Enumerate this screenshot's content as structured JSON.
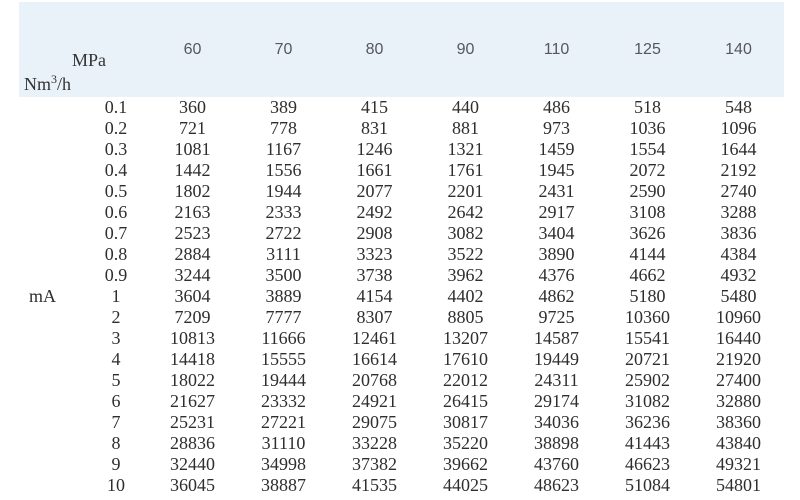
{
  "colors": {
    "header_bg": "#eaf2f9",
    "page_bg": "#ffffff"
  },
  "table": {
    "corner": {
      "col_axis_label": "MPa",
      "row_unit_prefix": "Nm",
      "row_unit_sup": "3",
      "row_unit_suffix": "/h"
    },
    "row_axis_label": "mA",
    "row_axis_row_index": 9,
    "column_headers": [
      "60",
      "70",
      "80",
      "90",
      "110",
      "125",
      "140"
    ],
    "rows": [
      {
        "label": "0.1",
        "values": [
          "360",
          "389",
          "415",
          "440",
          "486",
          "518",
          "548"
        ]
      },
      {
        "label": "0.2",
        "values": [
          "721",
          "778",
          "831",
          "881",
          "973",
          "1036",
          "1096"
        ]
      },
      {
        "label": "0.3",
        "values": [
          "1081",
          "1167",
          "1246",
          "1321",
          "1459",
          "1554",
          "1644"
        ]
      },
      {
        "label": "0.4",
        "values": [
          "1442",
          "1556",
          "1661",
          "1761",
          "1945",
          "2072",
          "2192"
        ]
      },
      {
        "label": "0.5",
        "values": [
          "1802",
          "1944",
          "2077",
          "2201",
          "2431",
          "2590",
          "2740"
        ]
      },
      {
        "label": "0.6",
        "values": [
          "2163",
          "2333",
          "2492",
          "2642",
          "2917",
          "3108",
          "3288"
        ]
      },
      {
        "label": "0.7",
        "values": [
          "2523",
          "2722",
          "2908",
          "3082",
          "3404",
          "3626",
          "3836"
        ]
      },
      {
        "label": "0.8",
        "values": [
          "2884",
          "3111",
          "3323",
          "3522",
          "3890",
          "4144",
          "4384"
        ]
      },
      {
        "label": "0.9",
        "values": [
          "3244",
          "3500",
          "3738",
          "3962",
          "4376",
          "4662",
          "4932"
        ]
      },
      {
        "label": "1",
        "values": [
          "3604",
          "3889",
          "4154",
          "4402",
          "4862",
          "5180",
          "5480"
        ]
      },
      {
        "label": "2",
        "values": [
          "7209",
          "7777",
          "8307",
          "8805",
          "9725",
          "10360",
          "10960"
        ]
      },
      {
        "label": "3",
        "values": [
          "10813",
          "11666",
          "12461",
          "13207",
          "14587",
          "15541",
          "16440"
        ]
      },
      {
        "label": "4",
        "values": [
          "14418",
          "15555",
          "16614",
          "17610",
          "19449",
          "20721",
          "21920"
        ]
      },
      {
        "label": "5",
        "values": [
          "18022",
          "19444",
          "20768",
          "22012",
          "24311",
          "25902",
          "27400"
        ]
      },
      {
        "label": "6",
        "values": [
          "21627",
          "23332",
          "24921",
          "26415",
          "29174",
          "31082",
          "32880"
        ]
      },
      {
        "label": "7",
        "values": [
          "25231",
          "27221",
          "29075",
          "30817",
          "34036",
          "36236",
          "38360"
        ]
      },
      {
        "label": "8",
        "values": [
          "28836",
          "31110",
          "33228",
          "35220",
          "38898",
          "41443",
          "43840"
        ]
      },
      {
        "label": "9",
        "values": [
          "32440",
          "34998",
          "37382",
          "39662",
          "43760",
          "46623",
          "49321"
        ]
      },
      {
        "label": "10",
        "values": [
          "36045",
          "38887",
          "41535",
          "44025",
          "48623",
          "51084",
          "54801"
        ]
      }
    ]
  }
}
